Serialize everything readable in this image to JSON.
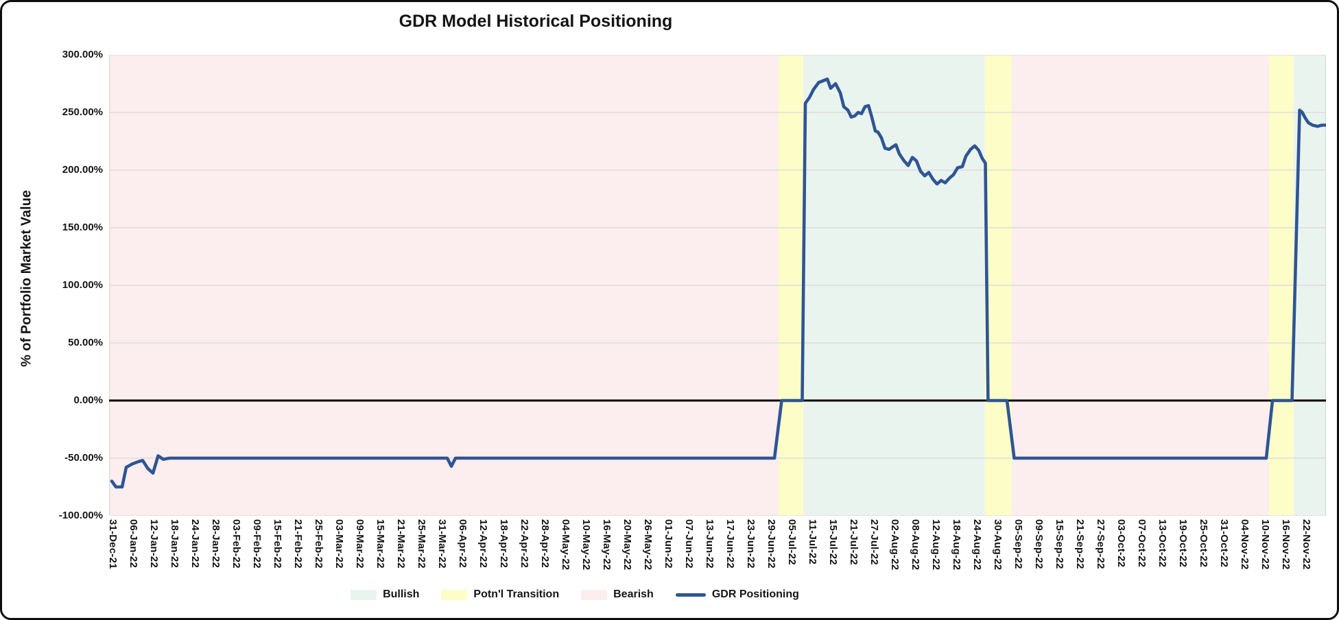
{
  "title": "GDR Model Historical Positioning",
  "y_axis": {
    "title": "% of Portfolio Market Value",
    "tick_labels": [
      "300.00%",
      "250.00%",
      "200.00%",
      "150.00%",
      "100.00%",
      "50.00%",
      "0.00%",
      "-50.00%",
      "-100.00%"
    ]
  },
  "x_axis": {
    "labels": [
      "31-Dec-21",
      "06-Jan-22",
      "12-Jan-22",
      "18-Jan-22",
      "24-Jan-22",
      "28-Jan-22",
      "03-Feb-22",
      "09-Feb-22",
      "15-Feb-22",
      "21-Feb-22",
      "25-Feb-22",
      "03-Mar-22",
      "09-Mar-22",
      "15-Mar-22",
      "21-Mar-22",
      "25-Mar-22",
      "31-Mar-22",
      "06-Apr-22",
      "12-Apr-22",
      "18-Apr-22",
      "22-Apr-22",
      "28-Apr-22",
      "04-May-22",
      "10-May-22",
      "16-May-22",
      "20-May-22",
      "26-May-22",
      "01-Jun-22",
      "07-Jun-22",
      "13-Jun-22",
      "17-Jun-22",
      "23-Jun-22",
      "29-Jun-22",
      "05-Jul-22",
      "11-Jul-22",
      "15-Jul-22",
      "21-Jul-22",
      "27-Jul-22",
      "02-Aug-22",
      "08-Aug-22",
      "12-Aug-22",
      "18-Aug-22",
      "24-Aug-22",
      "30-Aug-22",
      "05-Sep-22",
      "09-Sep-22",
      "15-Sep-22",
      "21-Sep-22",
      "27-Sep-22",
      "03-Oct-22",
      "07-Oct-22",
      "13-Oct-22",
      "19-Oct-22",
      "25-Oct-22",
      "31-Oct-22",
      "04-Nov-22",
      "10-Nov-22",
      "16-Nov-22",
      "22-Nov-22"
    ]
  },
  "legend": [
    {
      "label": "Bullish",
      "color": "#eaf4ef",
      "type": "box"
    },
    {
      "label": "Potn'l Transition",
      "color": "#fdfdc8",
      "type": "box"
    },
    {
      "label": "Bearish",
      "color": "#fcedee",
      "type": "box"
    },
    {
      "label": "GDR Positioning",
      "color": "#2e5594",
      "type": "line"
    }
  ],
  "chart_data": {
    "type": "line",
    "title": "GDR Model Historical Positioning",
    "xlabel": "",
    "ylabel": "% of Portfolio Market Value",
    "ylim": [
      -100,
      300
    ],
    "y_tick_step_pct": 50,
    "grid": true,
    "legend_position": "bottom",
    "x_unit": "tick index into x_axis.labels (fractional = dates between labeled ticks)",
    "zero_line_color": "#000000",
    "gridline_color": "#d8d8d8",
    "bands": [
      {
        "regime": "Bearish",
        "color": "#fcedee",
        "from": -0.14,
        "to": 32.4
      },
      {
        "regime": "Potn'l Transition",
        "color": "#fdfdc8",
        "from": 32.4,
        "to": 33.6
      },
      {
        "regime": "Bullish",
        "color": "#eaf4ef",
        "from": 33.6,
        "to": 42.43
      },
      {
        "regime": "Potn'l Transition",
        "color": "#fdfdc8",
        "from": 42.43,
        "to": 43.73
      },
      {
        "regime": "Bearish",
        "color": "#fcedee",
        "from": 43.73,
        "to": 56.23
      },
      {
        "regime": "Potn'l Transition",
        "color": "#fdfdc8",
        "from": 56.23,
        "to": 57.43
      },
      {
        "regime": "Bullish",
        "color": "#eaf4ef",
        "from": 57.43,
        "to": 59.0
      }
    ],
    "series": [
      {
        "name": "GDR Positioning",
        "color": "#2e5594",
        "points": [
          [
            0,
            -70
          ],
          [
            0.2,
            -75
          ],
          [
            0.5,
            -75
          ],
          [
            0.7,
            -58
          ],
          [
            1.0,
            -55
          ],
          [
            1.3,
            -53
          ],
          [
            1.5,
            -52
          ],
          [
            1.75,
            -59
          ],
          [
            2.0,
            -63
          ],
          [
            2.25,
            -48
          ],
          [
            2.5,
            -51
          ],
          [
            2.8,
            -50
          ],
          [
            16.3,
            -50
          ],
          [
            16.5,
            -57
          ],
          [
            16.7,
            -50
          ],
          [
            32.2,
            -50
          ],
          [
            32.55,
            0
          ],
          [
            33.55,
            0
          ],
          [
            33.7,
            258
          ],
          [
            33.9,
            263
          ],
          [
            34.1,
            270
          ],
          [
            34.35,
            276
          ],
          [
            34.77,
            279
          ],
          [
            34.93,
            271
          ],
          [
            35.17,
            275
          ],
          [
            35.4,
            267
          ],
          [
            35.57,
            255
          ],
          [
            35.77,
            252
          ],
          [
            35.93,
            246
          ],
          [
            36.1,
            247
          ],
          [
            36.27,
            250
          ],
          [
            36.43,
            249
          ],
          [
            36.6,
            255
          ],
          [
            36.77,
            256
          ],
          [
            36.93,
            246
          ],
          [
            37.1,
            234
          ],
          [
            37.23,
            233
          ],
          [
            37.4,
            228
          ],
          [
            37.57,
            219
          ],
          [
            37.77,
            218
          ],
          [
            37.93,
            220
          ],
          [
            38.1,
            222
          ],
          [
            38.27,
            214
          ],
          [
            38.5,
            208
          ],
          [
            38.7,
            204
          ],
          [
            38.9,
            211
          ],
          [
            39.1,
            208
          ],
          [
            39.3,
            199
          ],
          [
            39.5,
            195
          ],
          [
            39.7,
            198
          ],
          [
            39.9,
            192
          ],
          [
            40.1,
            188
          ],
          [
            40.3,
            191
          ],
          [
            40.5,
            189
          ],
          [
            40.7,
            193
          ],
          [
            40.9,
            196
          ],
          [
            41.1,
            202
          ],
          [
            41.33,
            203
          ],
          [
            41.5,
            212
          ],
          [
            41.73,
            218
          ],
          [
            41.93,
            221
          ],
          [
            42.13,
            217
          ],
          [
            42.3,
            210
          ],
          [
            42.45,
            206
          ],
          [
            42.58,
            0
          ],
          [
            43.5,
            0
          ],
          [
            43.85,
            -50
          ],
          [
            56.1,
            -50
          ],
          [
            56.4,
            0
          ],
          [
            57.35,
            0
          ],
          [
            57.72,
            252
          ],
          [
            57.85,
            250
          ],
          [
            58.0,
            245
          ],
          [
            58.15,
            241
          ],
          [
            58.35,
            239
          ],
          [
            58.6,
            238
          ],
          [
            58.8,
            239
          ],
          [
            59,
            239
          ]
        ]
      }
    ]
  }
}
